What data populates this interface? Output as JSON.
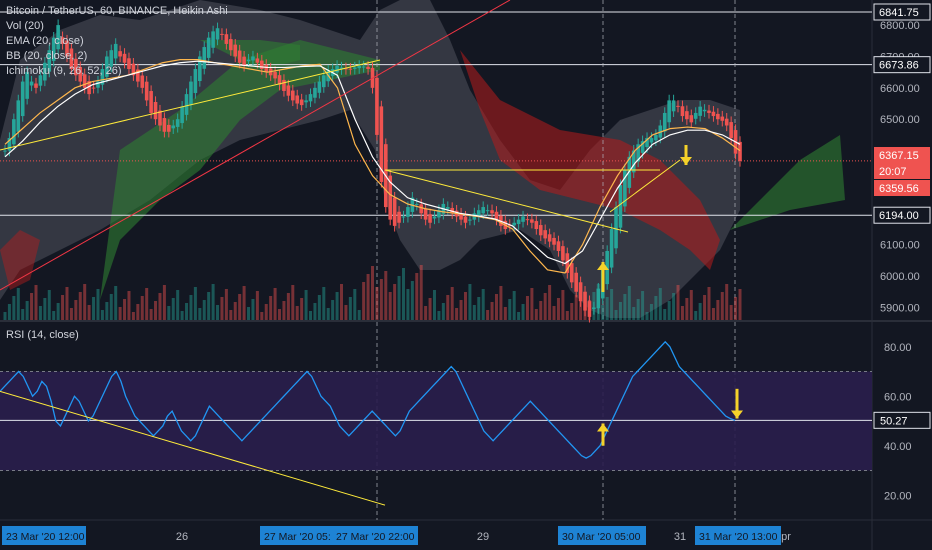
{
  "header": {
    "title": "Bitcoin / TetherUS, 60, BINANCE, Heikin Ashi",
    "indicators": [
      "Vol (20)",
      "EMA (20, close)",
      "BB (20, close, 2)",
      "Ichimoku (9, 26, 52, 26)"
    ]
  },
  "rsi_panel": {
    "label": "RSI (14, close)"
  },
  "price_axis": {
    "ticks": [
      "6800.00",
      "6700.00",
      "6600.00",
      "6500.00",
      "6400.00",
      "6100.00",
      "6000.00",
      "5900.00"
    ],
    "tags": [
      {
        "text": "6841.75",
        "style": "line"
      },
      {
        "text": "6673.86",
        "style": "line"
      },
      {
        "text": "6367.15",
        "style": "red"
      },
      {
        "text": "20:07",
        "style": "red"
      },
      {
        "text": "6359.56",
        "style": "red"
      },
      {
        "text": "6194.00",
        "style": "line"
      }
    ]
  },
  "rsi_axis": {
    "ticks": [
      "80.00",
      "60.00",
      "40.00",
      "20.00"
    ],
    "tag": "50.27"
  },
  "time_axis": {
    "ticks": [
      "26",
      "29",
      "31",
      "pr"
    ],
    "labels": [
      "23 Mar '20   12:00",
      "27 Mar '20   05:",
      "27 Mar '20   22:00",
      "30 Mar '20   05:00",
      "31 Mar '20   13:00"
    ]
  },
  "colors": {
    "background": "#131722",
    "up": "#26a69a",
    "down": "#ef5350",
    "bb_fill": "#5d606b",
    "cloud_green": "#2e7d32",
    "cloud_red": "#b71c1c",
    "rsi_band": "#2a1e4d",
    "rsi_line": "#2196f3",
    "trendline_yellow": "#ffeb3b",
    "trendline_red": "#f23645",
    "arrow_yellow": "#f5d22a",
    "ema": "#ffb74d",
    "bb_basis": "#ffffff"
  },
  "chart_data": [
    {
      "type": "line",
      "title": "Bitcoin / TetherUS, 60, BINANCE, Heikin Ashi",
      "ylim": [
        5860,
        6880
      ],
      "series": [
        {
          "name": "Heikin Ashi close",
          "values": [
            6400,
            6440,
            6500,
            6560,
            6620,
            6650,
            6620,
            6600,
            6640,
            6680,
            6720,
            6760,
            6800,
            6740,
            6700,
            6660,
            6640,
            6620,
            6600,
            6580,
            6600,
            6620,
            6660,
            6700,
            6720,
            6740,
            6700,
            6680,
            6660,
            6640,
            6620,
            6600,
            6560,
            6520,
            6500,
            6480,
            6460,
            6460,
            6480,
            6500,
            6540,
            6580,
            6620,
            6660,
            6700,
            6730,
            6760,
            6780,
            6790,
            6770,
            6740,
            6720,
            6700,
            6680,
            6670,
            6690,
            6700,
            6680,
            6660,
            6650,
            6640,
            6630,
            6610,
            6590,
            6575,
            6560,
            6550,
            6545,
            6560,
            6580,
            6600,
            6620,
            6640,
            6655,
            6660,
            6670,
            6665,
            6660,
            6660,
            6665,
            6670,
            6668,
            6660,
            6600,
            6450,
            6300,
            6220,
            6180,
            6160,
            6170,
            6190,
            6220,
            6250,
            6230,
            6200,
            6180,
            6170,
            6190,
            6210,
            6230,
            6220,
            6200,
            6190,
            6180,
            6170,
            6180,
            6200,
            6210,
            6220,
            6210,
            6200,
            6180,
            6160,
            6150,
            6160,
            6170,
            6180,
            6190,
            6180,
            6170,
            6150,
            6130,
            6120,
            6110,
            6100,
            6080,
            6050,
            6010,
            5980,
            5950,
            5920,
            5890,
            5870,
            5900,
            5960,
            6020,
            6080,
            6150,
            6220,
            6290,
            6340,
            6380,
            6400,
            6420,
            6430,
            6440,
            6440,
            6450,
            6480,
            6520,
            6560,
            6560,
            6540,
            6510,
            6500,
            6490,
            6520,
            6540,
            6530,
            6520,
            6510,
            6500,
            6495,
            6480,
            6440,
            6390,
            6367
          ]
        },
        {
          "name": "EMA (20, close)",
          "values": [
            6420,
            6470,
            6520,
            6560,
            6600,
            6620,
            6630,
            6640,
            6660,
            6680,
            6690,
            6690,
            6680,
            6670,
            6660,
            6650,
            6660,
            6670,
            6675,
            6600,
            6420,
            6320,
            6260,
            6230,
            6215,
            6205,
            6198,
            6190,
            6180,
            6150,
            6080,
            6020,
            6010,
            6100,
            6220,
            6320,
            6400,
            6450,
            6470,
            6475,
            6470,
            6440,
            6400
          ]
        },
        {
          "name": "BB basis",
          "values": [
            6380,
            6430,
            6490,
            6540,
            6580,
            6610,
            6625,
            6640,
            6655,
            6670,
            6680,
            6685,
            6680,
            6675,
            6670,
            6665,
            6665,
            6668,
            6670,
            6640,
            6500,
            6380,
            6300,
            6250,
            6230,
            6215,
            6200,
            6192,
            6182,
            6160,
            6110,
            6060,
            6040,
            6080,
            6180,
            6280,
            6360,
            6420,
            6450,
            6465,
            6465,
            6450,
            6420
          ]
        }
      ]
    },
    {
      "type": "line",
      "title": "RSI (14, close)",
      "ylim": [
        10,
        90
      ],
      "series": [
        {
          "name": "RSI",
          "values": [
            62,
            64,
            66,
            68,
            70,
            68,
            64,
            60,
            62,
            66,
            64,
            58,
            50,
            48,
            52,
            56,
            60,
            58,
            54,
            50,
            52,
            56,
            60,
            64,
            68,
            70,
            66,
            60,
            56,
            52,
            50,
            48,
            46,
            44,
            46,
            48,
            52,
            54,
            50,
            46,
            44,
            42,
            44,
            48,
            52,
            56,
            54,
            52,
            50,
            48,
            46,
            44,
            42,
            44,
            46,
            48,
            50,
            52,
            54,
            56,
            58,
            60,
            62,
            64,
            66,
            68,
            70,
            68,
            64,
            60,
            58,
            56,
            52,
            48,
            46,
            44,
            46,
            48,
            50,
            52,
            54,
            52,
            50,
            48,
            46,
            44,
            46,
            50,
            54,
            56,
            58,
            60,
            62,
            64,
            66,
            68,
            70,
            72,
            70,
            66,
            62,
            58,
            54,
            50,
            46,
            44,
            42,
            44,
            46,
            48,
            50,
            52,
            54,
            56,
            58,
            56,
            54,
            52,
            50,
            48,
            46,
            44,
            42,
            40,
            38,
            36,
            35,
            36,
            38,
            40,
            44,
            48,
            52,
            56,
            60,
            64,
            68,
            70,
            72,
            74,
            76,
            78,
            80,
            82,
            80,
            76,
            72,
            70,
            68,
            66,
            64,
            62,
            60,
            58,
            56,
            54,
            52,
            51,
            50.27
          ]
        }
      ]
    }
  ]
}
